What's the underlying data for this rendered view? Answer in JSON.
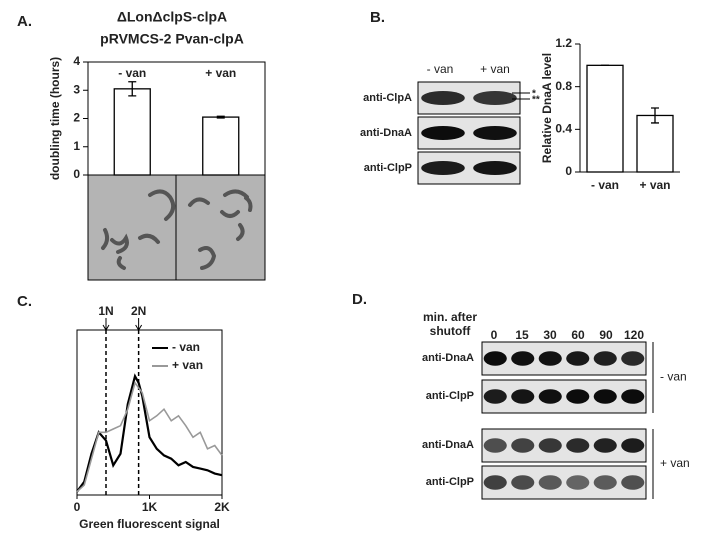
{
  "panel_labels": [
    "A.",
    "B.",
    "C.",
    "D."
  ],
  "chart_data": [
    {
      "type": "bar",
      "title_lines": [
        "ΔLonΔclpS-clpA",
        "pRVMCS-2 Pvan-clpA"
      ],
      "y_label": "doubling time (hours)",
      "categories": [
        "- van",
        "+ van"
      ],
      "values": [
        3.05,
        2.05
      ],
      "errors": [
        0.25,
        0.03
      ],
      "color": "#ffffff",
      "ylim": [
        0,
        4
      ],
      "yticks": [
        0,
        1,
        2,
        3,
        4
      ]
    },
    {
      "type": "bar",
      "y_label": "Relative DnaA level",
      "categories": [
        "- van",
        "+ van"
      ],
      "values": [
        1.0,
        0.53
      ],
      "errors": [
        0,
        0.07
      ],
      "color": "#ffffff",
      "ylim": [
        0,
        1.2
      ],
      "yticks": [
        0,
        0.4,
        0.8,
        1.2
      ]
    },
    {
      "type": "line",
      "x_label": "Green fluorescent signal",
      "legend": "upper right",
      "x": [
        0,
        100,
        200,
        300,
        400,
        500,
        600,
        700,
        800,
        850,
        900,
        1000,
        1100,
        1200,
        1300,
        1400,
        1500,
        1600,
        1700,
        1800,
        1900,
        2000
      ],
      "series": [
        {
          "name": "- van",
          "color": "#000000",
          "values": [
            2,
            8,
            25,
            38,
            33,
            18,
            25,
            55,
            72,
            68,
            60,
            35,
            28,
            24,
            22,
            18,
            20,
            17,
            16,
            15,
            13,
            12
          ]
        },
        {
          "name": "+ van",
          "color": "#999999",
          "values": [
            2,
            6,
            22,
            38,
            38,
            40,
            42,
            52,
            68,
            65,
            62,
            45,
            48,
            52,
            45,
            48,
            42,
            35,
            38,
            28,
            30,
            24
          ]
        }
      ],
      "markers": [
        {
          "label": "1N",
          "x": 400
        },
        {
          "label": "2N",
          "x": 850
        }
      ],
      "xlim": [
        0,
        2000
      ],
      "ylim": [
        0,
        100
      ],
      "xticks": [
        0,
        {
          "value": 1000,
          "label": "1K"
        },
        {
          "value": 2000,
          "label": "2K"
        }
      ]
    }
  ],
  "blot_b": {
    "columns": [
      "- van",
      "+ van"
    ],
    "rows": [
      "anti-ClpA",
      "anti-DnaA",
      "anti-ClpP"
    ],
    "marks": [
      "*",
      "**"
    ]
  },
  "blot_d": {
    "header_lines": [
      "min. after",
      "shutoff"
    ],
    "times": [
      "0",
      "15",
      "30",
      "60",
      "90",
      "120"
    ],
    "rows": [
      "anti-DnaA",
      "anti-ClpP",
      "anti-DnaA",
      "anti-ClpP"
    ],
    "groups": [
      "- van",
      "+ van"
    ]
  }
}
